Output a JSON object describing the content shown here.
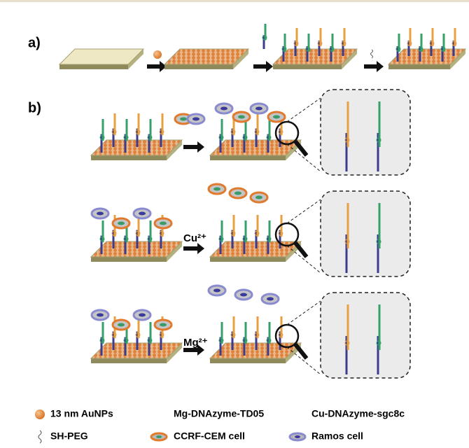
{
  "panels": {
    "a": "a)",
    "b": "b)"
  },
  "ions": {
    "cu": "Cu²⁺",
    "mg": "Mg²⁺"
  },
  "legend": {
    "aunp": "13 nm AuNPs",
    "mg_dnazyme": "Mg-DNAzyme-TD05",
    "cu_dnazyme": "Cu-DNAzyme-sgc8c",
    "peg": "SH-PEG",
    "ccrf": "CCRF-CEM cell",
    "ramos": "Ramos cell"
  }
}
